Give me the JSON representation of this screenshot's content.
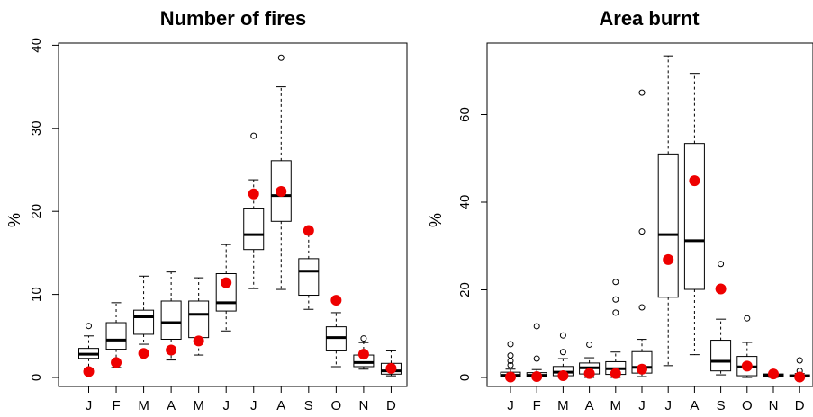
{
  "chart_data": [
    {
      "type": "boxplot",
      "title": "Number of fires",
      "ylabel": "%",
      "xlabel": "",
      "ylim": [
        0,
        40
      ],
      "yticks": [
        0,
        10,
        20,
        30,
        40
      ],
      "categories": [
        "J",
        "F",
        "M",
        "A",
        "M",
        "J",
        "J",
        "A",
        "S",
        "O",
        "N",
        "D"
      ],
      "boxes": [
        {
          "min": 1.0,
          "q1": 2.3,
          "median": 2.8,
          "q3": 3.5,
          "max": 5.0,
          "outliers": [
            6.2
          ]
        },
        {
          "min": 1.2,
          "q1": 3.4,
          "median": 4.5,
          "q3": 6.6,
          "max": 9.0,
          "outliers": []
        },
        {
          "min": 4.0,
          "q1": 5.2,
          "median": 7.3,
          "q3": 8.1,
          "max": 12.2,
          "outliers": []
        },
        {
          "min": 2.1,
          "q1": 4.6,
          "median": 6.6,
          "q3": 9.2,
          "max": 12.7,
          "outliers": []
        },
        {
          "min": 2.7,
          "q1": 4.8,
          "median": 7.6,
          "q3": 9.2,
          "max": 12.0,
          "outliers": []
        },
        {
          "min": 5.6,
          "q1": 8.0,
          "median": 9.0,
          "q3": 12.5,
          "max": 16.0,
          "outliers": []
        },
        {
          "min": 10.7,
          "q1": 15.4,
          "median": 17.2,
          "q3": 20.3,
          "max": 23.8,
          "outliers": [
            29.1
          ]
        },
        {
          "min": 10.6,
          "q1": 18.8,
          "median": 21.9,
          "q3": 26.1,
          "max": 35.0,
          "outliers": [
            38.5
          ]
        },
        {
          "min": 8.2,
          "q1": 9.9,
          "median": 12.8,
          "q3": 14.3,
          "max": 17.5,
          "outliers": []
        },
        {
          "min": 1.3,
          "q1": 3.2,
          "median": 4.8,
          "q3": 6.1,
          "max": 7.8,
          "outliers": []
        },
        {
          "min": 1.0,
          "q1": 1.3,
          "median": 1.8,
          "q3": 2.7,
          "max": 4.2,
          "outliers": [
            4.7
          ]
        },
        {
          "min": 0.2,
          "q1": 0.4,
          "median": 0.8,
          "q3": 1.7,
          "max": 3.2,
          "outliers": []
        }
      ],
      "points": [
        0.7,
        1.8,
        2.9,
        3.3,
        4.4,
        11.4,
        22.1,
        22.4,
        17.7,
        9.3,
        2.8,
        1.1
      ],
      "point_color": "#ee0000"
    },
    {
      "type": "boxplot",
      "title": "Area burnt",
      "ylabel": "%",
      "xlabel": "",
      "ylim": [
        0,
        80
      ],
      "yticks": [
        0,
        20,
        40,
        60
      ],
      "categories": [
        "J",
        "F",
        "M",
        "A",
        "M",
        "J",
        "J",
        "A",
        "S",
        "O",
        "N",
        "D"
      ],
      "boxes": [
        {
          "min": 0,
          "q1": 0.2,
          "median": 0.5,
          "q3": 1.2,
          "max": 1.9,
          "outliers": [
            2.8,
            3.8,
            5.0,
            7.6
          ]
        },
        {
          "min": 0,
          "q1": 0.2,
          "median": 0.5,
          "q3": 1.1,
          "max": 1.8,
          "outliers": [
            4.3,
            11.7
          ]
        },
        {
          "min": 0,
          "q1": 0.4,
          "median": 1.2,
          "q3": 2.5,
          "max": 4.3,
          "outliers": [
            5.8,
            9.6
          ]
        },
        {
          "min": 0,
          "q1": 0.8,
          "median": 2.2,
          "q3": 3.3,
          "max": 4.5,
          "outliers": [
            7.5
          ]
        },
        {
          "min": 0,
          "q1": 0.7,
          "median": 2.0,
          "q3": 3.6,
          "max": 5.8,
          "outliers": [
            14.8,
            17.8,
            21.8
          ]
        },
        {
          "min": 0.2,
          "q1": 1.0,
          "median": 2.3,
          "q3": 5.9,
          "max": 8.7,
          "outliers": [
            16.0,
            33.3,
            65.0
          ]
        },
        {
          "min": 2.7,
          "q1": 18.3,
          "median": 32.6,
          "q3": 51.0,
          "max": 73.4,
          "outliers": []
        },
        {
          "min": 5.2,
          "q1": 20.1,
          "median": 31.2,
          "q3": 53.4,
          "max": 69.4,
          "outliers": []
        },
        {
          "min": 0.6,
          "q1": 1.5,
          "median": 3.7,
          "q3": 8.5,
          "max": 13.3,
          "outliers": [
            25.9
          ]
        },
        {
          "min": 0,
          "q1": 0.4,
          "median": 2.4,
          "q3": 4.8,
          "max": 8.0,
          "outliers": [
            13.5
          ]
        },
        {
          "min": 0,
          "q1": 0.1,
          "median": 0.4,
          "q3": 0.8,
          "max": 1.0,
          "outliers": []
        },
        {
          "min": 0,
          "q1": 0.1,
          "median": 0.3,
          "q3": 0.6,
          "max": 0.9,
          "outliers": [
            1.5,
            3.9
          ]
        }
      ],
      "points": [
        0.1,
        0.2,
        0.4,
        0.9,
        0.9,
        1.9,
        26.9,
        44.9,
        20.2,
        2.6,
        0.8,
        0.1
      ],
      "point_color": "#ee0000"
    }
  ]
}
